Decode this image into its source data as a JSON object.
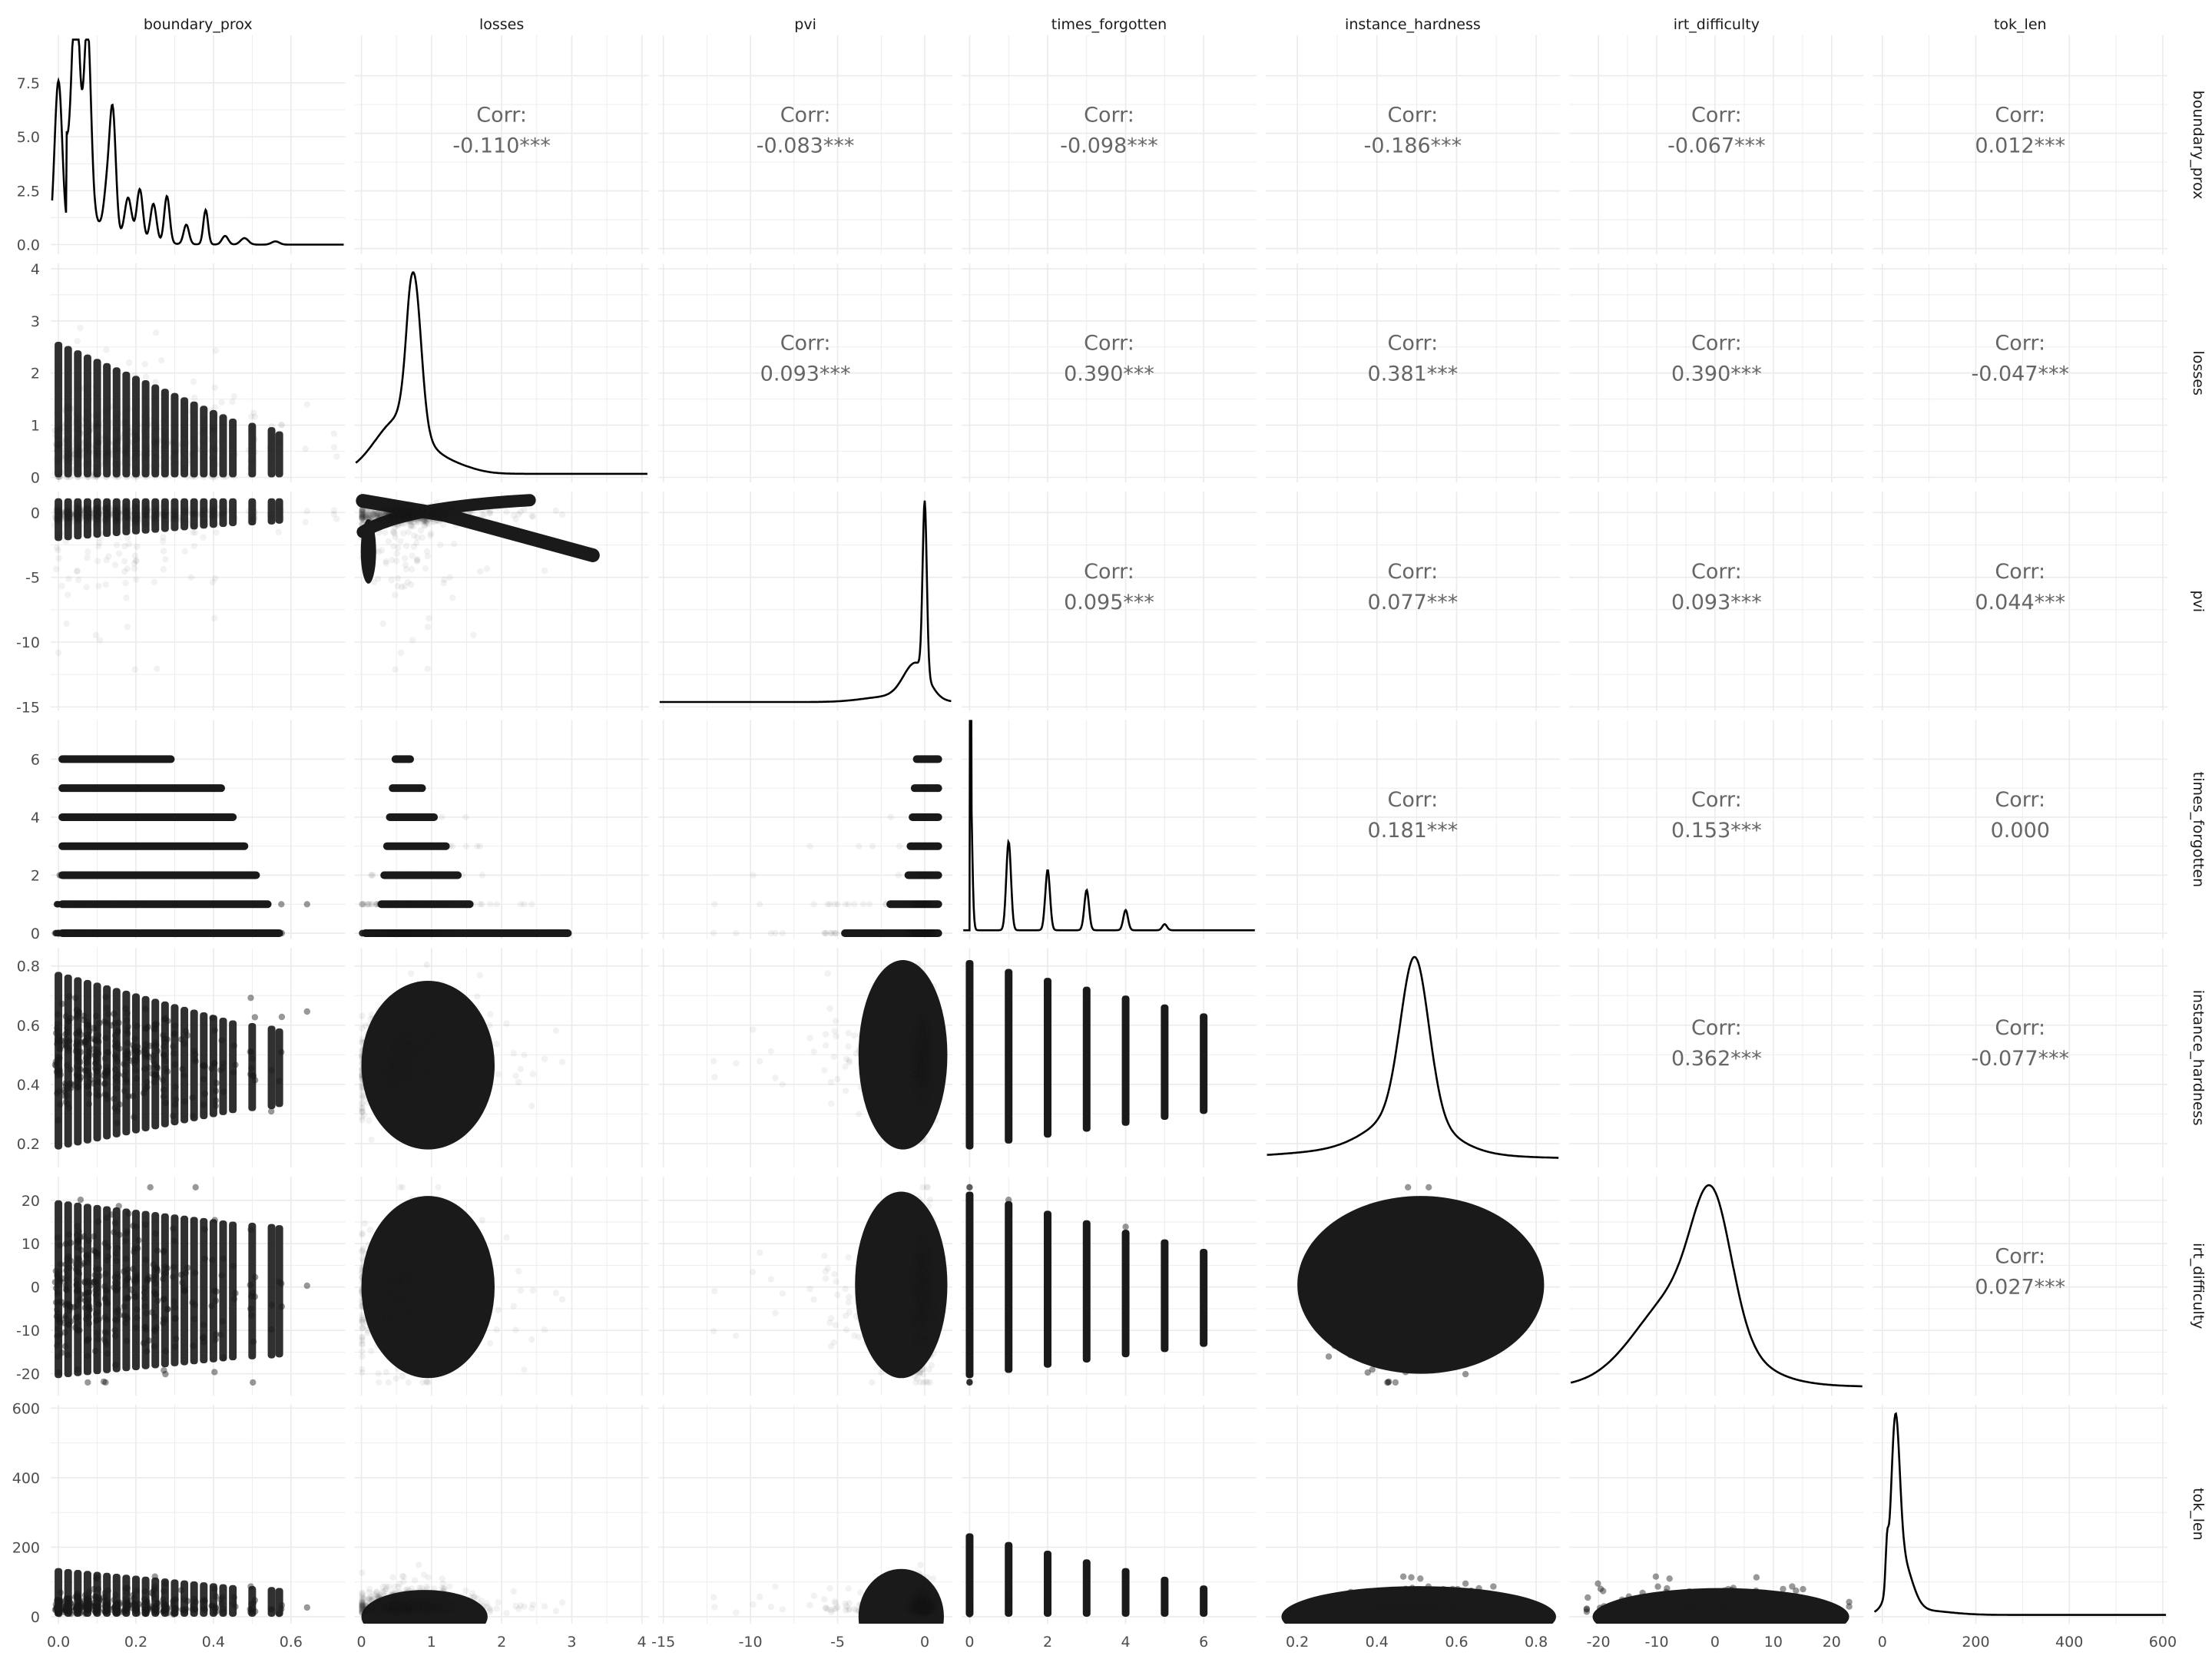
{
  "chart_data": {
    "type": "scatter",
    "variables": [
      "boundary_prox",
      "losses",
      "pvi",
      "times_forgotten",
      "instance_hardness",
      "irt_difficulty",
      "tok_len"
    ],
    "axes": {
      "boundary_prox": {
        "range": [
          -0.02,
          0.74
        ],
        "ticks": [
          0.0,
          0.2,
          0.4,
          0.6
        ],
        "tick_labels": [
          "0.0",
          "0.2",
          "0.4",
          "0.6"
        ]
      },
      "losses": {
        "range": [
          -0.1,
          4.1
        ],
        "ticks": [
          0,
          1,
          2,
          3,
          4
        ],
        "tick_labels": [
          "0",
          "1",
          "2",
          "3",
          "4"
        ]
      },
      "pvi": {
        "range": [
          -15.3,
          1.6
        ],
        "ticks": [
          -15,
          -10,
          -5,
          0
        ],
        "tick_labels": [
          "-15",
          "-10",
          "-5",
          "0"
        ]
      },
      "times_forgotten": {
        "range": [
          -0.2,
          7.35
        ],
        "ticks": [
          0,
          2,
          4,
          6
        ],
        "tick_labels": [
          "0",
          "2",
          "4",
          "6"
        ]
      },
      "instance_hardness": {
        "range": [
          0.12,
          0.86
        ],
        "ticks": [
          0.2,
          0.4,
          0.6,
          0.8
        ],
        "tick_labels": [
          "0.2",
          "0.4",
          "0.6",
          "0.8"
        ]
      },
      "irt_difficulty": {
        "range": [
          -25,
          25.5
        ],
        "ticks": [
          -20,
          -10,
          0,
          10,
          20
        ],
        "tick_labels": [
          "-20",
          "-10",
          "0",
          "10",
          "20"
        ]
      },
      "tok_len": {
        "range": [
          -20,
          610
        ],
        "ticks": [
          0,
          200,
          400,
          600
        ],
        "tick_labels": [
          "0",
          "200",
          "400",
          "600"
        ]
      }
    },
    "density_y_axis": {
      "range": [
        -0.45,
        9.7
      ],
      "ticks": [
        0.0,
        2.5,
        5.0,
        7.5
      ],
      "tick_labels": [
        "0.0",
        "2.5",
        "5.0",
        "7.5"
      ]
    },
    "corr_label": "Corr:",
    "correlations": [
      {
        "row": "boundary_prox",
        "col": "losses",
        "text": "-0.110***"
      },
      {
        "row": "boundary_prox",
        "col": "pvi",
        "text": "-0.083***"
      },
      {
        "row": "boundary_prox",
        "col": "times_forgotten",
        "text": "-0.098***"
      },
      {
        "row": "boundary_prox",
        "col": "instance_hardness",
        "text": "-0.186***"
      },
      {
        "row": "boundary_prox",
        "col": "irt_difficulty",
        "text": "-0.067***"
      },
      {
        "row": "boundary_prox",
        "col": "tok_len",
        "text": "0.012***"
      },
      {
        "row": "losses",
        "col": "pvi",
        "text": "0.093***"
      },
      {
        "row": "losses",
        "col": "times_forgotten",
        "text": "0.390***"
      },
      {
        "row": "losses",
        "col": "instance_hardness",
        "text": "0.381***"
      },
      {
        "row": "losses",
        "col": "irt_difficulty",
        "text": "0.390***"
      },
      {
        "row": "losses",
        "col": "tok_len",
        "text": "-0.047***"
      },
      {
        "row": "pvi",
        "col": "times_forgotten",
        "text": "0.095***"
      },
      {
        "row": "pvi",
        "col": "instance_hardness",
        "text": "0.077***"
      },
      {
        "row": "pvi",
        "col": "irt_difficulty",
        "text": "0.093***"
      },
      {
        "row": "pvi",
        "col": "tok_len",
        "text": "0.044***"
      },
      {
        "row": "times_forgotten",
        "col": "instance_hardness",
        "text": "0.181***"
      },
      {
        "row": "times_forgotten",
        "col": "irt_difficulty",
        "text": "0.153***"
      },
      {
        "row": "times_forgotten",
        "col": "tok_len",
        "text": "0.000"
      },
      {
        "row": "instance_hardness",
        "col": "irt_difficulty",
        "text": "0.362***"
      },
      {
        "row": "instance_hardness",
        "col": "tok_len",
        "text": "-0.077***"
      },
      {
        "row": "irt_difficulty",
        "col": "tok_len",
        "text": "0.027***"
      }
    ],
    "grid": true,
    "point_color": "#1a1a1a",
    "line_color": "#000000"
  }
}
